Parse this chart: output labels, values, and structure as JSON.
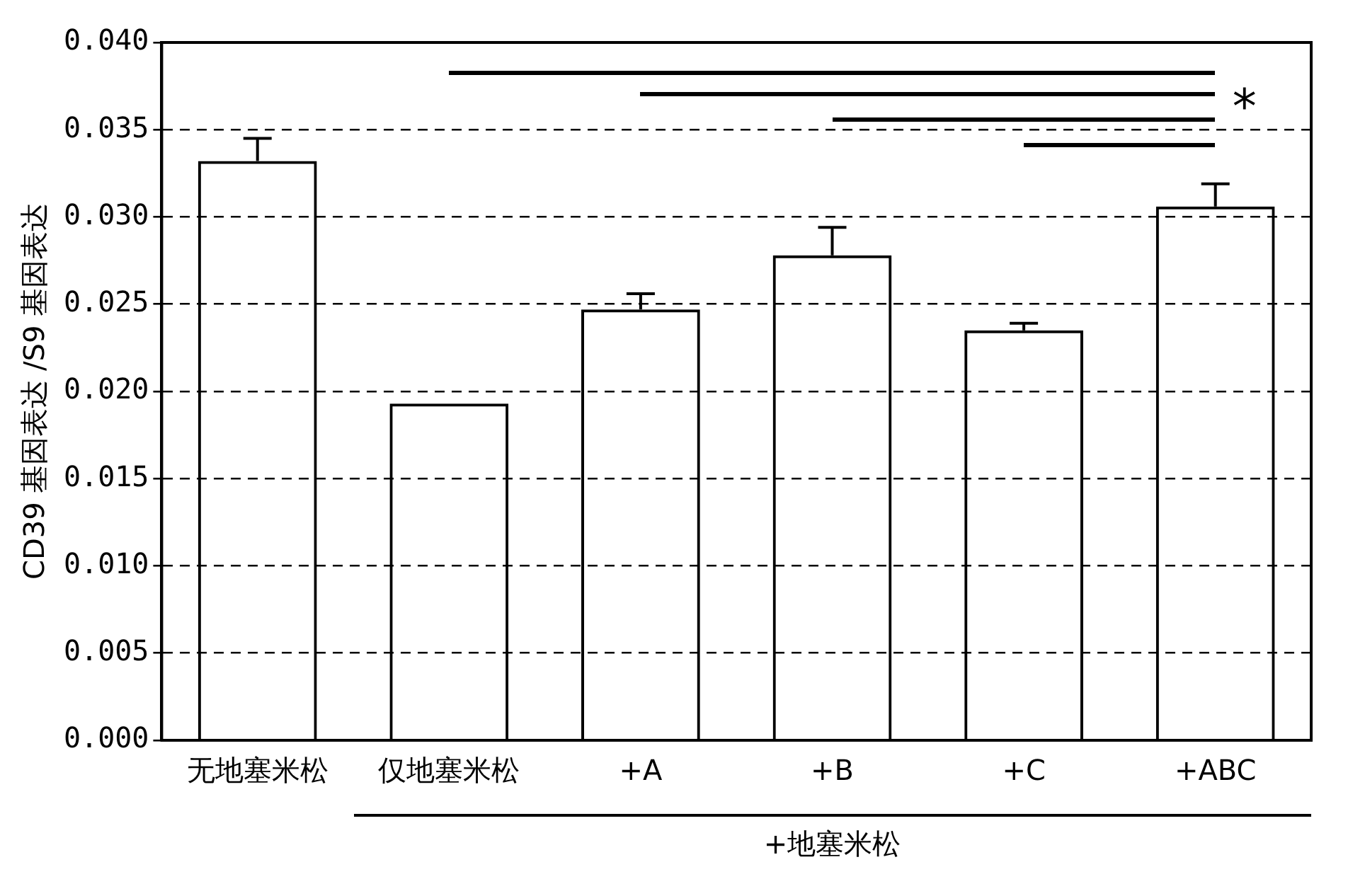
{
  "chart_data": {
    "type": "bar",
    "ylabel": "CD39 基因表达 /S9 基因表达",
    "categories": [
      "无地塞米松",
      "仅地塞米松",
      "+A",
      "+B",
      "+C",
      "+ABC"
    ],
    "values": [
      0.0332,
      0.0193,
      0.0247,
      0.0278,
      0.0235,
      0.0306
    ],
    "errors": [
      [
        0.0332,
        0.0345
      ],
      null,
      [
        0.0247,
        0.0256
      ],
      [
        0.0278,
        0.0294
      ],
      [
        0.0235,
        0.0239
      ],
      [
        0.0306,
        0.0319
      ]
    ],
    "color": "#000000",
    "ylim": [
      0,
      0.04
    ],
    "yticks": [
      {
        "value": 0,
        "label": "0.000"
      },
      {
        "value": 0.005,
        "label": "0.005"
      },
      {
        "value": 0.01,
        "label": "0.010"
      },
      {
        "value": 0.015,
        "label": "0.015"
      },
      {
        "value": 0.02,
        "label": "0.020"
      },
      {
        "value": 0.025,
        "label": "0.025"
      },
      {
        "value": 0.03,
        "label": "0.030"
      },
      {
        "value": 0.035,
        "label": "0.035"
      },
      {
        "value": 0.04,
        "label": "0.040"
      }
    ],
    "grid": "y",
    "annotations": [
      "*",
      "+地塞米松"
    ]
  }
}
